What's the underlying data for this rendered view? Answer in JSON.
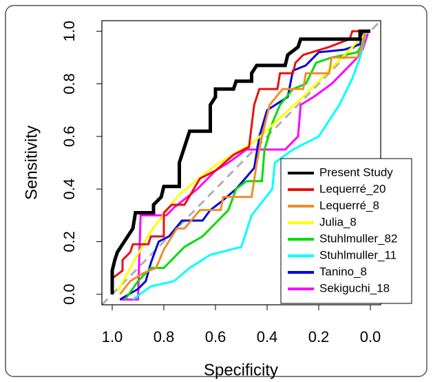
{
  "chart_data": {
    "type": "line",
    "x_label": "Specificity",
    "y_label": "Sensitivity",
    "xlim": [
      1.04,
      -0.04
    ],
    "ylim": [
      -0.04,
      1.04
    ],
    "xticks": [
      {
        "value": 1,
        "label": "1.0"
      },
      0.8,
      0.6,
      0.4,
      0.2,
      {
        "value": 0,
        "label": "0.0"
      }
    ],
    "yticks": [
      {
        "value": 0,
        "label": "0.0"
      },
      0.2,
      0.4,
      0.6,
      0.8,
      {
        "value": 1,
        "label": "1.0"
      }
    ],
    "legend": "bottomright",
    "series": [
      {
        "name": "Present Study",
        "color": "#000000",
        "x": [
          1,
          1,
          0.99,
          0.98,
          0.96,
          0.94,
          0.92,
          0.91,
          0.84,
          0.84,
          0.81,
          0.8,
          0.74,
          0.74,
          0.72,
          0.71,
          0.7,
          0.62,
          0.62,
          0.6,
          0.6,
          0.53,
          0.52,
          0.46,
          0.46,
          0.44,
          0.33,
          0.32,
          0.28,
          0.27,
          0.04,
          0.04,
          0
        ],
        "values": [
          0,
          0.09,
          0.13,
          0.16,
          0.19,
          0.22,
          0.25,
          0.31,
          0.31,
          0.34,
          0.37,
          0.41,
          0.41,
          0.5,
          0.56,
          0.59,
          0.62,
          0.62,
          0.72,
          0.75,
          0.78,
          0.78,
          0.81,
          0.81,
          0.84,
          0.87,
          0.87,
          0.91,
          0.94,
          0.97,
          0.97,
          1,
          1
        ]
      },
      {
        "name": "Lequerré_20",
        "color": "#e8100c",
        "x": [
          1,
          1,
          0.96,
          0.96,
          0.93,
          0.92,
          0.86,
          0.85,
          0.8,
          0.8,
          0.77,
          0.72,
          0.66,
          0.6,
          0.53,
          0.47,
          0.45,
          0.43,
          0.36,
          0.35,
          0.3,
          0.29,
          0.26,
          0.16,
          0.08,
          0.07,
          0
        ],
        "values": [
          0,
          0.06,
          0.09,
          0.13,
          0.16,
          0.19,
          0.19,
          0.22,
          0.22,
          0.31,
          0.34,
          0.34,
          0.44,
          0.47,
          0.53,
          0.56,
          0.72,
          0.78,
          0.78,
          0.84,
          0.84,
          0.88,
          0.91,
          0.94,
          0.97,
          1,
          1
        ]
      },
      {
        "name": "Lequerré_8",
        "color": "#f28c28",
        "x": [
          0.97,
          0.93,
          0.88,
          0.83,
          0.8,
          0.75,
          0.72,
          0.66,
          0.58,
          0.57,
          0.46,
          0.44,
          0.42,
          0.39,
          0.34,
          0.26,
          0.25,
          0.16,
          0.15,
          0.05,
          0.03,
          0.02
        ],
        "values": [
          0,
          0.05,
          0.08,
          0.1,
          0.17,
          0.25,
          0.25,
          0.32,
          0.32,
          0.37,
          0.37,
          0.5,
          0.6,
          0.72,
          0.78,
          0.78,
          0.84,
          0.84,
          0.9,
          0.9,
          0.95,
          1
        ]
      },
      {
        "name": "Julia_8",
        "color": "#ffff00",
        "x": [
          0.98,
          0.93,
          0.85,
          0.74,
          0.6,
          0.45,
          0.35,
          0.25,
          0.15,
          0.05,
          0.02
        ],
        "values": [
          0.01,
          0.1,
          0.24,
          0.38,
          0.49,
          0.58,
          0.67,
          0.76,
          0.86,
          0.96,
          0.99
        ]
      },
      {
        "name": "Stuhlmuller_82",
        "color": "#00dd00",
        "x": [
          0.95,
          0.9,
          0.85,
          0.8,
          0.78,
          0.72,
          0.65,
          0.6,
          0.55,
          0.52,
          0.48,
          0.42,
          0.41,
          0.38,
          0.35,
          0.3,
          0.25,
          0.21,
          0.15,
          0.05,
          0.02
        ],
        "values": [
          -0.02,
          0.05,
          0.1,
          0.1,
          0.12,
          0.18,
          0.22,
          0.27,
          0.32,
          0.4,
          0.43,
          0.43,
          0.55,
          0.65,
          0.72,
          0.78,
          0.8,
          0.88,
          0.9,
          0.92,
          0.97
        ]
      },
      {
        "name": "Stuhlmuller_11",
        "color": "#00ffff",
        "x": [
          0.92,
          0.85,
          0.76,
          0.7,
          0.62,
          0.5,
          0.46,
          0.38,
          0.37,
          0.3,
          0.2,
          0.12,
          0.07,
          0.04,
          0.02
        ],
        "values": [
          -0.02,
          0.03,
          0.05,
          0.1,
          0.15,
          0.18,
          0.3,
          0.4,
          0.5,
          0.55,
          0.6,
          0.72,
          0.82,
          0.9,
          0.98
        ]
      },
      {
        "name": "Tanino_8",
        "color": "#0000dd",
        "x": [
          0.97,
          0.9,
          0.87,
          0.85,
          0.82,
          0.78,
          0.73,
          0.65,
          0.62,
          0.58,
          0.52,
          0.45,
          0.43,
          0.4,
          0.32,
          0.3,
          0.25,
          0.2,
          0.1,
          0.04,
          0.03
        ],
        "values": [
          -0.02,
          0.02,
          0.05,
          0.12,
          0.2,
          0.22,
          0.28,
          0.28,
          0.32,
          0.35,
          0.4,
          0.48,
          0.6,
          0.7,
          0.75,
          0.85,
          0.87,
          0.92,
          0.93,
          0.95,
          1
        ]
      },
      {
        "name": "Sekiguchi_18",
        "color": "#ff00ff",
        "x": [
          0.97,
          0.9,
          0.89,
          0.79,
          0.76,
          0.67,
          0.6,
          0.55,
          0.48,
          0.33,
          0.28,
          0.27,
          0.22,
          0.15,
          0.05,
          0.03,
          0.01
        ],
        "values": [
          -0.02,
          -0.02,
          0.3,
          0.3,
          0.33,
          0.4,
          0.47,
          0.5,
          0.55,
          0.55,
          0.6,
          0.72,
          0.75,
          0.8,
          0.9,
          0.93,
          0.99
        ]
      }
    ]
  }
}
